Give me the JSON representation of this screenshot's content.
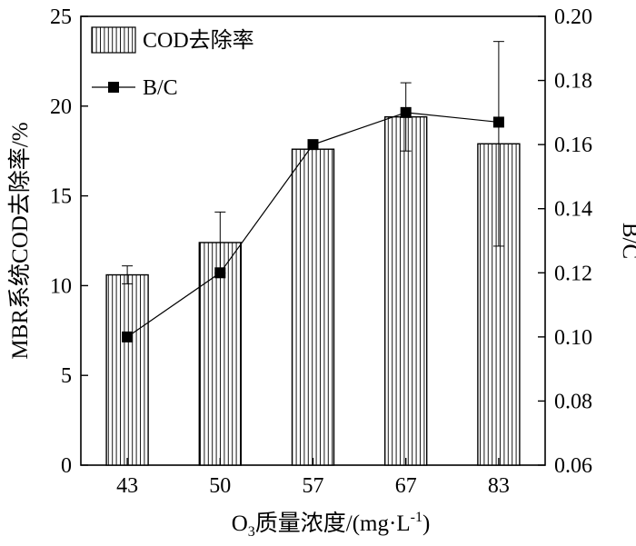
{
  "chart_data": {
    "type": "bar",
    "categories": [
      "43",
      "50",
      "57",
      "67",
      "83"
    ],
    "xlabel": "O3质量浓度/(mg·L-1)",
    "ylabel_left": "MBR系统COD去除率/%",
    "ylabel_right": "B/C",
    "ylim_left": [
      0,
      25
    ],
    "ylim_right": [
      0.06,
      0.2
    ],
    "yticks_left": [
      "0",
      "5",
      "10",
      "15",
      "20",
      "25"
    ],
    "yticks_right": [
      "0.06",
      "0.08",
      "0.10",
      "0.12",
      "0.14",
      "0.16",
      "0.18",
      "0.20"
    ],
    "grid": false,
    "legend_position": "top-left",
    "series": [
      {
        "name": "COD去除率",
        "kind": "bar",
        "axis": "left",
        "values": [
          10.6,
          12.4,
          17.6,
          19.4,
          17.9
        ],
        "error": [
          0.5,
          1.7,
          0,
          1.9,
          5.7
        ]
      },
      {
        "name": "B/C",
        "kind": "line",
        "axis": "right",
        "values": [
          0.1,
          0.12,
          0.16,
          0.17,
          0.167
        ]
      }
    ]
  }
}
